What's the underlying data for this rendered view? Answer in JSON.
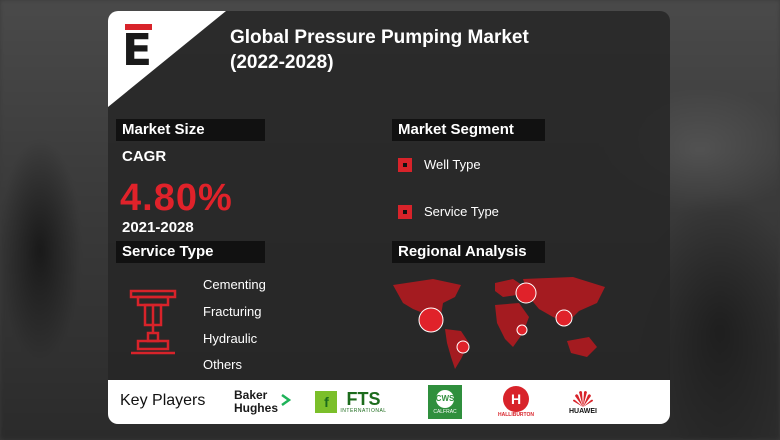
{
  "header": {
    "logo_letter": "E",
    "title_line1": "Global Pressure Pumping Market",
    "title_line2": "(2022-2028)"
  },
  "market_size": {
    "label": "Market Size",
    "cagr_label": "CAGR",
    "cagr_value": "4.80%",
    "period": "2021-2028"
  },
  "market_segment": {
    "label": "Market Segment",
    "items": [
      "Well Type",
      "Service Type"
    ]
  },
  "service_type": {
    "label": "Service Type",
    "items": [
      "Cementing",
      "Fracturing",
      "Hydraulic",
      "Others"
    ],
    "icon": "pump-equipment-icon"
  },
  "regional_analysis": {
    "label": "Regional Analysis",
    "icon": "world-map-icon"
  },
  "key_players": {
    "label": "Key Players",
    "companies": [
      {
        "name_line1": "Baker",
        "name_line2": "Hughes"
      },
      {
        "name": "FTS",
        "sub": "INTERNATIONAL"
      },
      {
        "name": "CWS",
        "sub": "CALFRAC"
      },
      {
        "name": "HALLIBURTON"
      },
      {
        "name": "HUAWEI"
      }
    ]
  },
  "colors": {
    "accent_red": "#d8232a",
    "card_bg": "#262626",
    "label_bg": "#111111"
  }
}
